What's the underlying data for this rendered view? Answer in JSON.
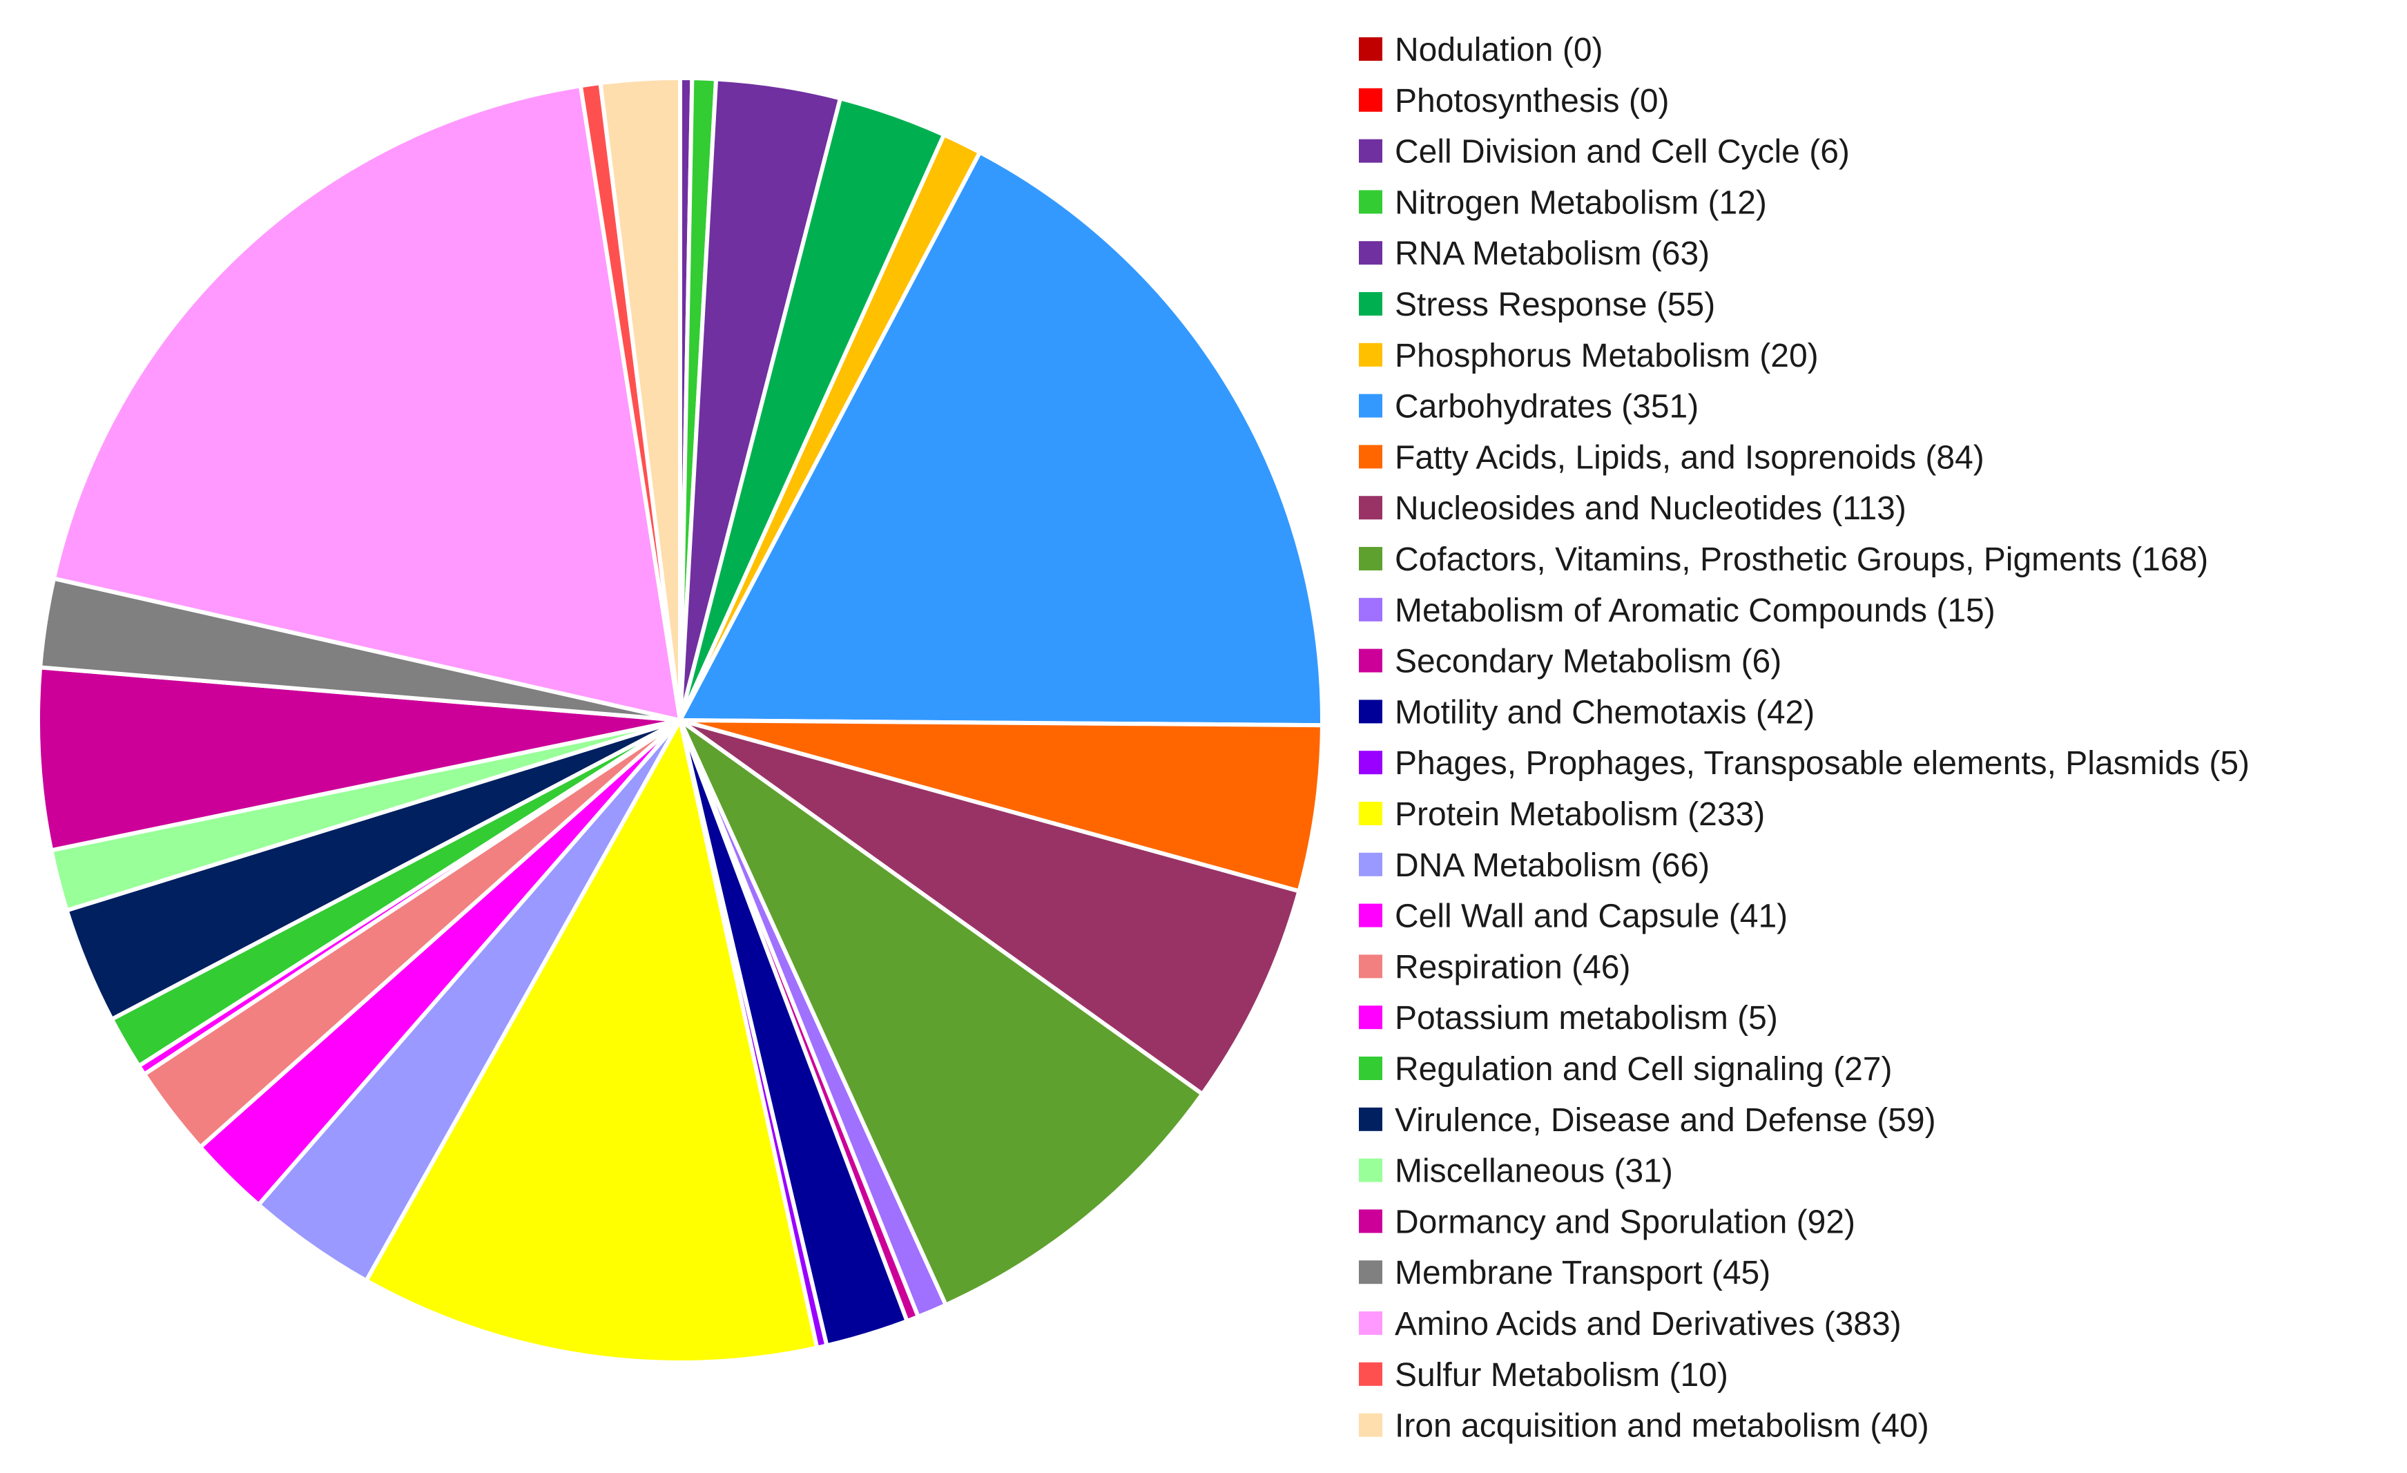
{
  "chart_data": {
    "type": "pie",
    "title": "",
    "legend_position": "right",
    "start_angle_deg": 0,
    "direction": "clockwise",
    "slices": [
      {
        "label": "Nodulation (0)",
        "value": 0,
        "color": "#c00000"
      },
      {
        "label": "Photosynthesis (0)",
        "value": 0,
        "color": "#ff0000"
      },
      {
        "label": "Cell Division and Cell Cycle (6)",
        "value": 6,
        "color": "#7030a0"
      },
      {
        "label": "Nitrogen Metabolism (12)",
        "value": 12,
        "color": "#33cc33"
      },
      {
        "label": "RNA Metabolism (63)",
        "value": 63,
        "color": "#7030a0"
      },
      {
        "label": "Stress Response (55)",
        "value": 55,
        "color": "#00b050"
      },
      {
        "label": "Phosphorus Metabolism (20)",
        "value": 20,
        "color": "#ffc000"
      },
      {
        "label": "Carbohydrates (351)",
        "value": 351,
        "color": "#3399ff"
      },
      {
        "label": "Fatty Acids, Lipids, and Isoprenoids (84)",
        "value": 84,
        "color": "#ff6600"
      },
      {
        "label": "Nucleosides and Nucleotides (113)",
        "value": 113,
        "color": "#993366"
      },
      {
        "label": "Cofactors, Vitamins, Prosthetic Groups, Pigments (168)",
        "value": 168,
        "color": "#5fa12f"
      },
      {
        "label": "Metabolism of Aromatic Compounds (15)",
        "value": 15,
        "color": "#a070ff"
      },
      {
        "label": "Secondary Metabolism (6)",
        "value": 6,
        "color": "#cc0099"
      },
      {
        "label": "Motility and Chemotaxis (42)",
        "value": 42,
        "color": "#000099"
      },
      {
        "label": "Phages, Prophages, Transposable elements, Plasmids (5)",
        "value": 5,
        "color": "#9900ff"
      },
      {
        "label": "Protein Metabolism (233)",
        "value": 233,
        "color": "#ffff00"
      },
      {
        "label": "DNA Metabolism (66)",
        "value": 66,
        "color": "#9999ff"
      },
      {
        "label": "Cell Wall and Capsule (41)",
        "value": 41,
        "color": "#ff00ff"
      },
      {
        "label": "Respiration (46)",
        "value": 46,
        "color": "#f28080"
      },
      {
        "label": "Potassium metabolism (5)",
        "value": 5,
        "color": "#ff00ff"
      },
      {
        "label": "Regulation and Cell signaling (27)",
        "value": 27,
        "color": "#33cc33"
      },
      {
        "label": "Virulence, Disease and Defense (59)",
        "value": 59,
        "color": "#002060"
      },
      {
        "label": "Miscellaneous (31)",
        "value": 31,
        "color": "#99ff99"
      },
      {
        "label": "Dormancy and Sporulation (92)",
        "value": 92,
        "color": "#cc0099"
      },
      {
        "label": "Membrane Transport (45)",
        "value": 45,
        "color": "#808080"
      },
      {
        "label": "Amino Acids and Derivatives (383)",
        "value": 383,
        "color": "#ff99ff"
      },
      {
        "label": "Sulfur Metabolism (10)",
        "value": 10,
        "color": "#ff5050"
      },
      {
        "label": "Iron acquisition and metabolism (40)",
        "value": 40,
        "color": "#ffdead"
      }
    ]
  }
}
